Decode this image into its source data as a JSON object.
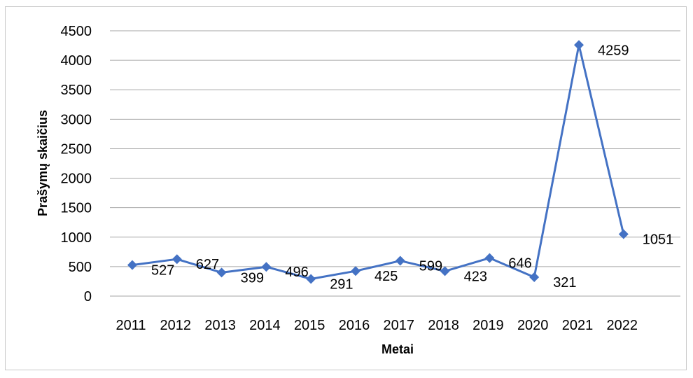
{
  "chart_data": {
    "type": "line",
    "title": "",
    "xlabel": "Metai",
    "ylabel": "Prašymų skaičius",
    "categories": [
      "2011",
      "2012",
      "2013",
      "2014",
      "2015",
      "2016",
      "2017",
      "2018",
      "2019",
      "2020",
      "2021",
      "2022"
    ],
    "series": [
      {
        "values": [
          527,
          627,
          399,
          496,
          291,
          425,
          599,
          423,
          646,
          321,
          4259,
          1051
        ]
      }
    ],
    "ylim": [
      0,
      4500
    ],
    "yticks": [
      0,
      500,
      1000,
      1500,
      2000,
      2500,
      3000,
      3500,
      4000,
      4500
    ],
    "grid": true,
    "legend": "none",
    "data_labels": true,
    "colors": {
      "series": "#4472c4",
      "grid": "#a6a6a6",
      "frame": "#c8c8c8"
    }
  }
}
